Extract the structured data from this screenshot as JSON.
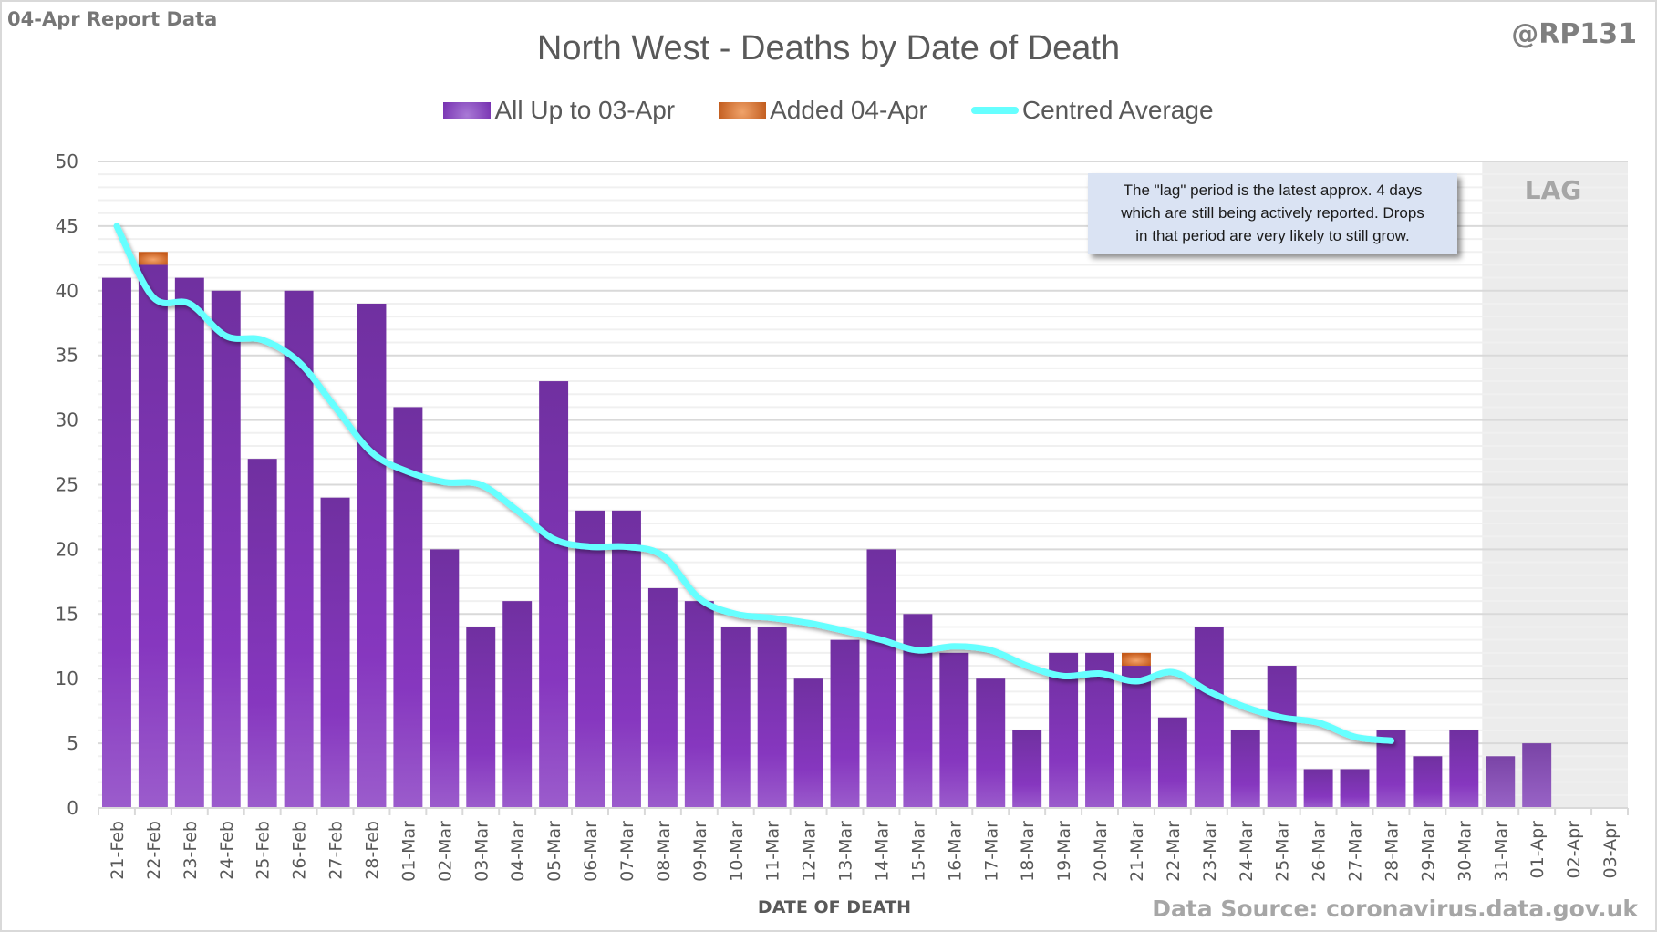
{
  "header": {
    "report_label": "04-Apr Report Data",
    "handle": "@RP131",
    "title": "North West - Deaths by Date of Death"
  },
  "legend": [
    {
      "label": "All Up to 03-Apr",
      "color": "#7630b0"
    },
    {
      "label": "Added 04-Apr",
      "color": "#c05a1c"
    },
    {
      "label": "Centred Average",
      "color": "#66ffff"
    }
  ],
  "annotation": {
    "lines": [
      "The \"lag\" period is the latest approx. 4 days",
      "which are still being actively reported.  Drops",
      "in that period are very likely to still grow."
    ],
    "lag_label": "LAG"
  },
  "footer": {
    "xlabel": "DATE OF DEATH",
    "source": "Data Source: coronavirus.data.gov.uk"
  },
  "chart_data": {
    "type": "bar",
    "title": "North West - Deaths by Date of Death",
    "xlabel": "DATE OF DEATH",
    "ylabel": "",
    "ylim": [
      0,
      50
    ],
    "yticks": [
      0,
      5,
      10,
      15,
      20,
      25,
      30,
      35,
      40,
      45,
      50
    ],
    "minor_grid_step": 1,
    "grid": true,
    "legend_position": "top",
    "lag_start_category": "31-Mar",
    "categories": [
      "21-Feb",
      "22-Feb",
      "23-Feb",
      "24-Feb",
      "25-Feb",
      "26-Feb",
      "27-Feb",
      "28-Feb",
      "01-Mar",
      "02-Mar",
      "03-Mar",
      "04-Mar",
      "05-Mar",
      "06-Mar",
      "07-Mar",
      "08-Mar",
      "09-Mar",
      "10-Mar",
      "11-Mar",
      "12-Mar",
      "13-Mar",
      "14-Mar",
      "15-Mar",
      "16-Mar",
      "17-Mar",
      "18-Mar",
      "19-Mar",
      "20-Mar",
      "21-Mar",
      "22-Mar",
      "23-Mar",
      "24-Mar",
      "25-Mar",
      "26-Mar",
      "27-Mar",
      "28-Mar",
      "29-Mar",
      "30-Mar",
      "31-Mar",
      "01-Apr",
      "02-Apr",
      "03-Apr"
    ],
    "series": [
      {
        "name": "All Up to 03-Apr",
        "type": "bar",
        "values": [
          41,
          42,
          41,
          40,
          27,
          40,
          24,
          39,
          31,
          20,
          14,
          16,
          33,
          23,
          23,
          17,
          16,
          14,
          14,
          10,
          13,
          20,
          15,
          12,
          10,
          6,
          12,
          12,
          11,
          7,
          14,
          6,
          11,
          3,
          3,
          6,
          4,
          6,
          4,
          5,
          0,
          0
        ]
      },
      {
        "name": "Added 04-Apr",
        "type": "bar-stacked",
        "values": [
          0,
          1,
          0,
          0,
          0,
          0,
          0,
          0,
          0,
          0,
          0,
          0,
          0,
          0,
          0,
          0,
          0,
          0,
          0,
          0,
          0,
          0,
          0,
          0,
          0,
          0,
          0,
          0,
          1,
          0,
          0,
          0,
          0,
          0,
          0,
          0,
          0,
          0,
          0,
          0,
          0,
          0
        ]
      },
      {
        "name": "Centred Average",
        "type": "line",
        "values": [
          45,
          39.5,
          39,
          36.5,
          36.2,
          34.5,
          31,
          27.5,
          26,
          25.2,
          25,
          23,
          20.8,
          20.2,
          20.2,
          19.5,
          16.2,
          15,
          14.7,
          14.3,
          13.7,
          13,
          12.2,
          12.5,
          12.2,
          11,
          10.2,
          10.4,
          9.8,
          10.5,
          9,
          7.8,
          7,
          6.6,
          5.5,
          5.2,
          null,
          null,
          null,
          null,
          null,
          null
        ]
      }
    ]
  }
}
